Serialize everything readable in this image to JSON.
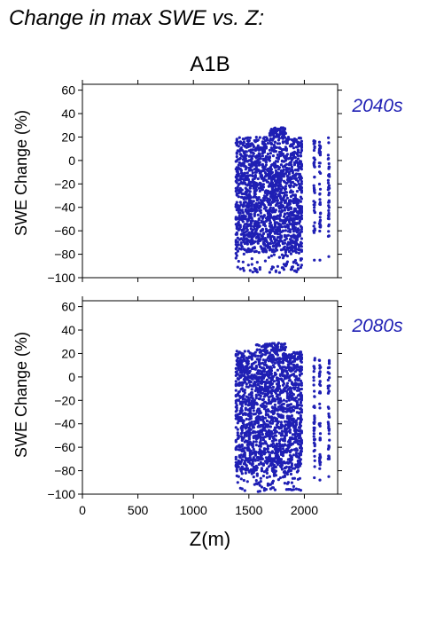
{
  "figure": {
    "title": "Change in max SWE vs. Z:",
    "panel_title": "A1B",
    "series_color": "#1f1fb4"
  },
  "chart_data": [
    {
      "type": "scatter",
      "title": "A1B",
      "annotation": "2040s",
      "xlabel": "",
      "ylabel": "SWE Change (%)",
      "xlim": [
        0,
        2300
      ],
      "ylim": [
        -100,
        65
      ],
      "xticks": [],
      "yticks": [
        "60",
        "40",
        "20",
        "0",
        "−20",
        "−40",
        "−60",
        "−80",
        "−100"
      ],
      "grid": false,
      "series": [
        {
          "color": "#1f1fb4",
          "clusters": [
            {
              "x": [
                1380,
                1980
              ],
              "y": [
                -78,
                20
              ],
              "density": "dense"
            },
            {
              "x": [
                1380,
                1980
              ],
              "y": [
                -96,
                -78
              ],
              "density": "sparse"
            },
            {
              "x": [
                1690,
                1830
              ],
              "y": [
                20,
                28
              ],
              "density": "sparse"
            },
            {
              "columns_x": [
                2090,
                2140
              ],
              "y": [
                -62,
                20
              ]
            },
            {
              "columns_x": [
                2220
              ],
              "y": [
                -65,
                20
              ]
            },
            {
              "points": [
                [
                  2090,
                  -85
                ],
                [
                  2140,
                  -85
                ],
                [
                  2220,
                  -82
                ],
                [
                  1930,
                  -95
                ],
                [
                  1880,
                  -93
                ],
                [
                  1400,
                  -91
                ]
              ]
            }
          ]
        }
      ]
    },
    {
      "type": "scatter",
      "title": "",
      "annotation": "2080s",
      "xlabel": "Z(m)",
      "ylabel": "SWE Change (%)",
      "xlim": [
        0,
        2300
      ],
      "ylim": [
        -100,
        65
      ],
      "xticks": [
        "0",
        "500",
        "1000",
        "1500",
        "2000"
      ],
      "yticks": [
        "60",
        "40",
        "20",
        "0",
        "−20",
        "−40",
        "−60",
        "−80",
        "−100"
      ],
      "grid": false,
      "series": [
        {
          "color": "#1f1fb4",
          "clusters": [
            {
              "x": [
                1380,
                1980
              ],
              "y": [
                -82,
                22
              ],
              "density": "dense"
            },
            {
              "x": [
                1380,
                1980
              ],
              "y": [
                -98,
                -82
              ],
              "density": "sparse"
            },
            {
              "x": [
                1560,
                1830
              ],
              "y": [
                22,
                29
              ],
              "density": "sparse"
            },
            {
              "columns_x": [
                2090,
                2140
              ],
              "y": [
                -80,
                20
              ]
            },
            {
              "columns_x": [
                2220
              ],
              "y": [
                -72,
                22
              ]
            },
            {
              "points": [
                [
                  2090,
                  -86
                ],
                [
                  2140,
                  -88
                ],
                [
                  2220,
                  -85
                ],
                [
                  1950,
                  -96
                ],
                [
                  1400,
                  -90
                ]
              ]
            }
          ]
        }
      ]
    }
  ]
}
